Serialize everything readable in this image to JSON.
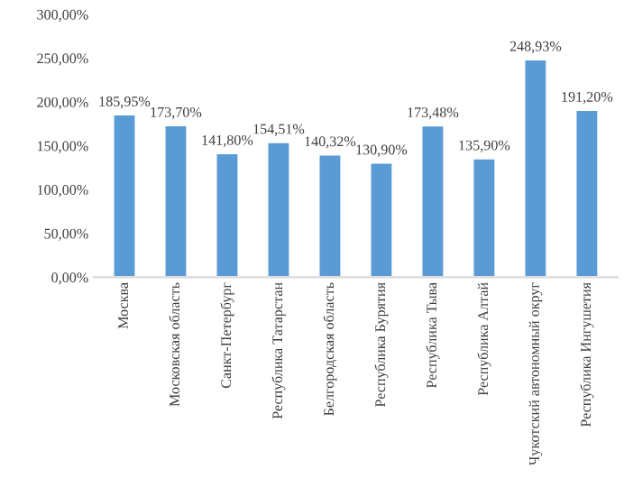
{
  "chart_data": {
    "type": "bar",
    "categories": [
      "Москва",
      "Московская область",
      "Санкт-Петербург",
      "Республика Татарстан",
      "Белгородская область",
      "Республика Бурятия",
      "Республика Тыва",
      "Республика Алтай",
      "Чукотский автономный округ",
      "Республика Ингушетия"
    ],
    "values": [
      185.95,
      173.7,
      141.8,
      154.51,
      140.32,
      130.9,
      173.48,
      135.9,
      248.93,
      191.2
    ],
    "value_labels": [
      "185,95%",
      "173,70%",
      "141,80%",
      "154,51%",
      "140,32%",
      "130,90%",
      "173,48%",
      "135,90%",
      "248,93%",
      "191,20%"
    ],
    "color": "#5b9bd5",
    "ylim": [
      0,
      300
    ],
    "yticks": [
      {
        "value": 0,
        "label": "0,00%"
      },
      {
        "value": 50,
        "label": "50,00%"
      },
      {
        "value": 100,
        "label": "100,00%"
      },
      {
        "value": 150,
        "label": "150,00%"
      },
      {
        "value": 200,
        "label": "200,00%"
      },
      {
        "value": 250,
        "label": "250,00%"
      },
      {
        "value": 300,
        "label": "300,00%"
      }
    ],
    "grid": false,
    "legend": false
  }
}
